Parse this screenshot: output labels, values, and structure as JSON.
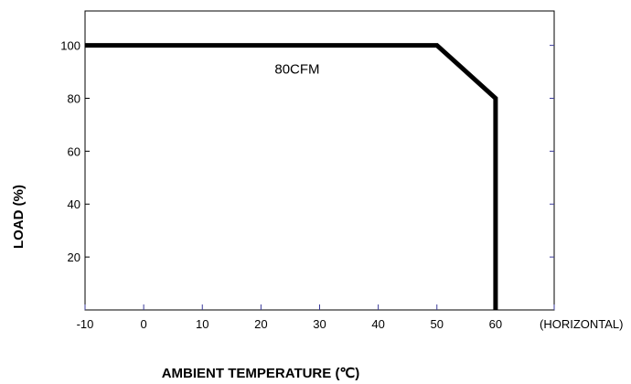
{
  "chart_data": {
    "type": "line",
    "xlabel": "AMBIENT TEMPERATURE (℃)",
    "ylabel": "LOAD (%)",
    "x_ticks": [
      "-10",
      "0",
      "10",
      "20",
      "30",
      "40",
      "50",
      "60"
    ],
    "x_tick_values": [
      -10,
      0,
      10,
      20,
      30,
      40,
      50,
      60
    ],
    "x_extra_label": "(HORIZONTAL)",
    "y_ticks": [
      "20",
      "40",
      "60",
      "80",
      "100"
    ],
    "y_tick_values": [
      20,
      40,
      60,
      80,
      100
    ],
    "xlim": [
      -10,
      70
    ],
    "ylim": [
      0,
      113
    ],
    "grid": false,
    "series": [
      {
        "x": [
          -10,
          50,
          60,
          60
        ],
        "y": [
          100,
          100,
          80,
          0
        ]
      }
    ],
    "annotations": [
      {
        "text": "80CFM",
        "x": 20,
        "y": 91
      }
    ],
    "colors": {
      "line": "#000000",
      "axis": "#000000",
      "right_ticks": "#3a3a9a"
    }
  }
}
